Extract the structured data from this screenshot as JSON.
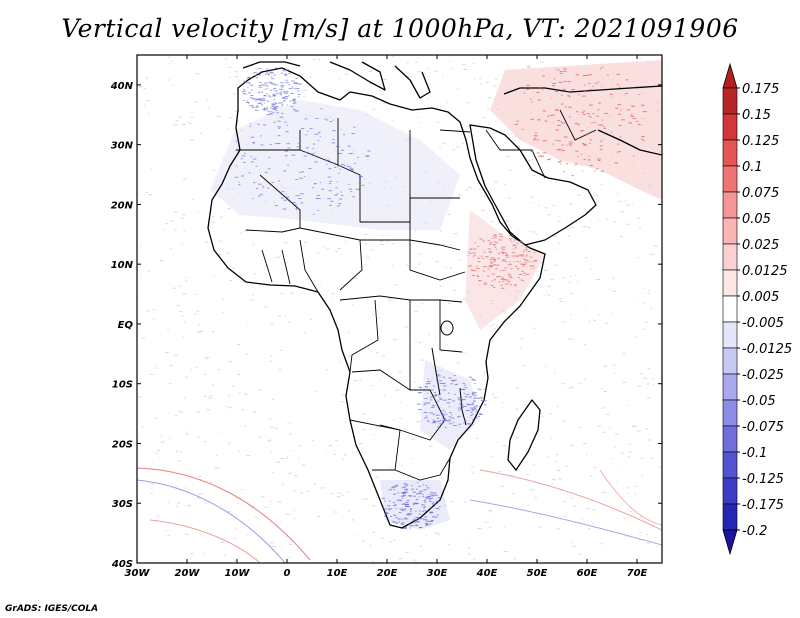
{
  "title": "Vertical velocity [m/s] at 1000hPa, VT: 2021091906",
  "credit": "GrADS: IGES/COLA",
  "map": {
    "lon_range": [
      -30,
      75
    ],
    "lat_range": [
      -40,
      45
    ],
    "lon_ticks": [
      {
        "lon": -30,
        "label": "30W"
      },
      {
        "lon": -20,
        "label": "20W"
      },
      {
        "lon": -10,
        "label": "10W"
      },
      {
        "lon": 0,
        "label": "0"
      },
      {
        "lon": 10,
        "label": "10E"
      },
      {
        "lon": 20,
        "label": "20E"
      },
      {
        "lon": 30,
        "label": "30E"
      },
      {
        "lon": 40,
        "label": "40E"
      },
      {
        "lon": 50,
        "label": "50E"
      },
      {
        "lon": 60,
        "label": "60E"
      },
      {
        "lon": 70,
        "label": "70E"
      }
    ],
    "lat_ticks": [
      {
        "lat": 40,
        "label": "40N"
      },
      {
        "lat": 30,
        "label": "30N"
      },
      {
        "lat": 20,
        "label": "20N"
      },
      {
        "lat": 10,
        "label": "10N"
      },
      {
        "lat": 0,
        "label": "EQ"
      },
      {
        "lat": -10,
        "label": "10S"
      },
      {
        "lat": -20,
        "label": "20S"
      },
      {
        "lat": -30,
        "label": "30S"
      },
      {
        "lat": -40,
        "label": "40S"
      }
    ]
  },
  "colorbar": {
    "labels": [
      "0.175",
      "0.15",
      "0.125",
      "0.1",
      "0.075",
      "0.05",
      "0.025",
      "0.0125",
      "0.005",
      "-0.005",
      "-0.0125",
      "-0.025",
      "-0.05",
      "-0.075",
      "-0.1",
      "-0.125",
      "-0.175",
      "-0.2"
    ],
    "colors": [
      "#b8262a",
      "#d43538",
      "#e65454",
      "#f07474",
      "#f59595",
      "#f9b4b4",
      "#fbd0d0",
      "#fde6e6",
      "#ffffff",
      "#e6e6fb",
      "#c8c8f5",
      "#a9a9ee",
      "#8c8ce6",
      "#6f6fde",
      "#5353d4",
      "#3c3cc6",
      "#2626b4",
      "#1a1aa0"
    ],
    "top_color": "#b21e22",
    "bottom_color": "#1a14a0"
  }
}
